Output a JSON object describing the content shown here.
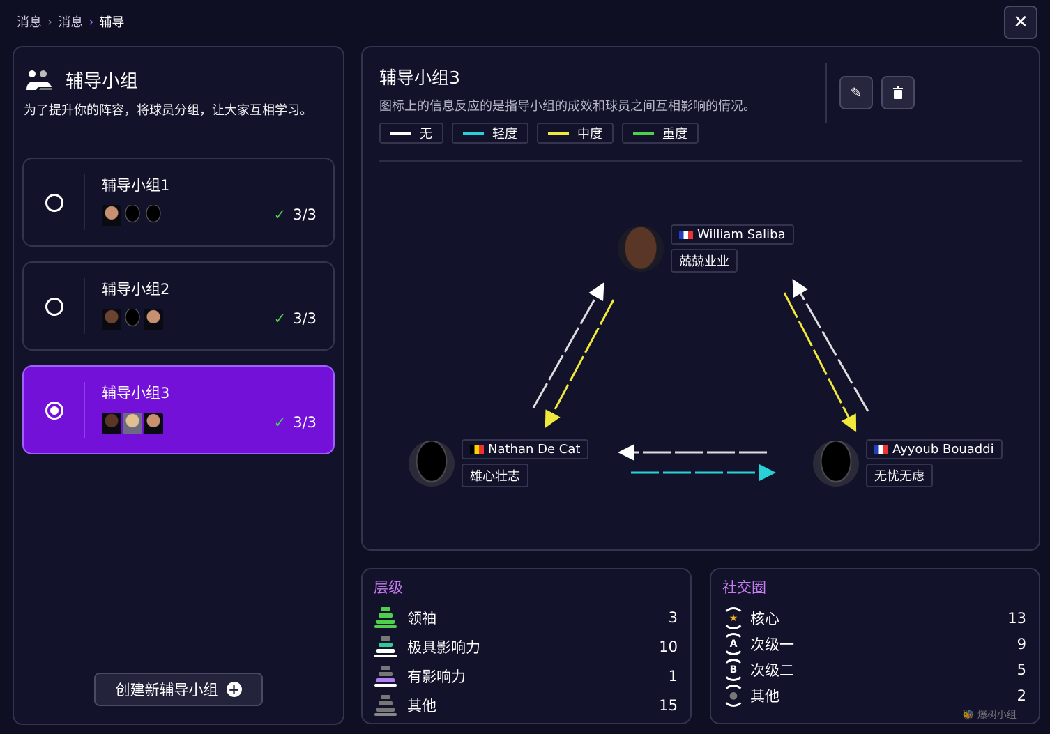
{
  "breadcrumb": [
    "消息",
    "消息",
    "辅导"
  ],
  "close_icon": "close-icon",
  "left": {
    "title": "辅导小组",
    "description": "为了提升你的阵容，将球员分组，让大家互相学习。",
    "groups": [
      {
        "name": "辅导小组1",
        "count": "3/3",
        "selected": false
      },
      {
        "name": "辅导小组2",
        "count": "3/3",
        "selected": false
      },
      {
        "name": "辅导小组3",
        "count": "3/3",
        "selected": true
      }
    ],
    "create_label": "创建新辅导小组"
  },
  "detail": {
    "title": "辅导小组3",
    "description": "图标上的信息反应的是指导小组的成效和球员之间互相影响的情况。",
    "legend": [
      {
        "label": "无",
        "color": "#ffffff"
      },
      {
        "label": "轻度",
        "color": "#2ad0d8"
      },
      {
        "label": "中度",
        "color": "#f0e83a"
      },
      {
        "label": "重度",
        "color": "#4ed04e"
      }
    ],
    "players": [
      {
        "name": "William Saliba",
        "trait": "兢兢业业",
        "flag": "fr"
      },
      {
        "name": "Nathan De Cat",
        "trait": "雄心壮志",
        "flag": "be"
      },
      {
        "name": "Ayyoub Bouaddi",
        "trait": "无忧无虑",
        "flag": "fr"
      }
    ]
  },
  "hierarchy": {
    "title": "层级",
    "rows": [
      {
        "label": "领袖",
        "value": "3",
        "color": "#4ed04e"
      },
      {
        "label": "极具影响力",
        "value": "10",
        "color": "#2fc89a"
      },
      {
        "label": "有影响力",
        "value": "1",
        "color": "#b080f0"
      },
      {
        "label": "其他",
        "value": "15",
        "color": "#888888"
      }
    ]
  },
  "social": {
    "title": "社交圈",
    "rows": [
      {
        "label": "核心",
        "value": "13",
        "icon": "★"
      },
      {
        "label": "次级一",
        "value": "9",
        "icon": "A"
      },
      {
        "label": "次级二",
        "value": "5",
        "icon": "B"
      },
      {
        "label": "其他",
        "value": "2",
        "icon": "●"
      }
    ]
  },
  "watermark": "爆树小组 WWW.PLAYGM.CC"
}
